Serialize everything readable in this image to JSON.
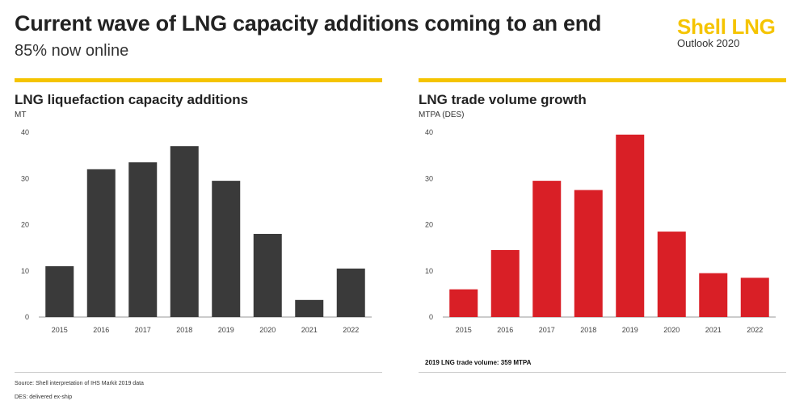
{
  "header": {
    "title": "Current wave of LNG capacity additions coming to an end",
    "subtitle": "85% now online",
    "brand": "Shell LNG",
    "brand_sub": "Outlook 2020"
  },
  "colors": {
    "accent": "#f5c400",
    "left_bars": "#3a3a3a",
    "right_bars": "#d91f26"
  },
  "footer": {
    "source": "Source: Shell interpretation of IHS Markit 2019 data",
    "des": "DES: delivered ex-ship"
  },
  "chart_data": [
    {
      "type": "bar",
      "title": "LNG liquefaction capacity additions",
      "ylabel": "MT",
      "categories": [
        "2015",
        "2016",
        "2017",
        "2018",
        "2019",
        "2020",
        "2021",
        "2022"
      ],
      "values": [
        11,
        32,
        33.5,
        37,
        29.5,
        18,
        3.7,
        10.5
      ],
      "ylim": [
        0,
        40
      ],
      "yticks": [
        0,
        10,
        20,
        30,
        40
      ],
      "grid": false,
      "color": "#3a3a3a"
    },
    {
      "type": "bar",
      "title": "LNG trade volume growth",
      "ylabel": "MTPA (DES)",
      "categories": [
        "2015",
        "2016",
        "2017",
        "2018",
        "2019",
        "2020",
        "2021",
        "2022"
      ],
      "values": [
        6,
        14.5,
        29.5,
        27.5,
        39.5,
        18.5,
        9.5,
        8.5
      ],
      "ylim": [
        0,
        40
      ],
      "yticks": [
        0,
        10,
        20,
        30,
        40
      ],
      "grid": false,
      "color": "#d91f26",
      "note": "2019 LNG trade volume: 359 MTPA"
    }
  ]
}
